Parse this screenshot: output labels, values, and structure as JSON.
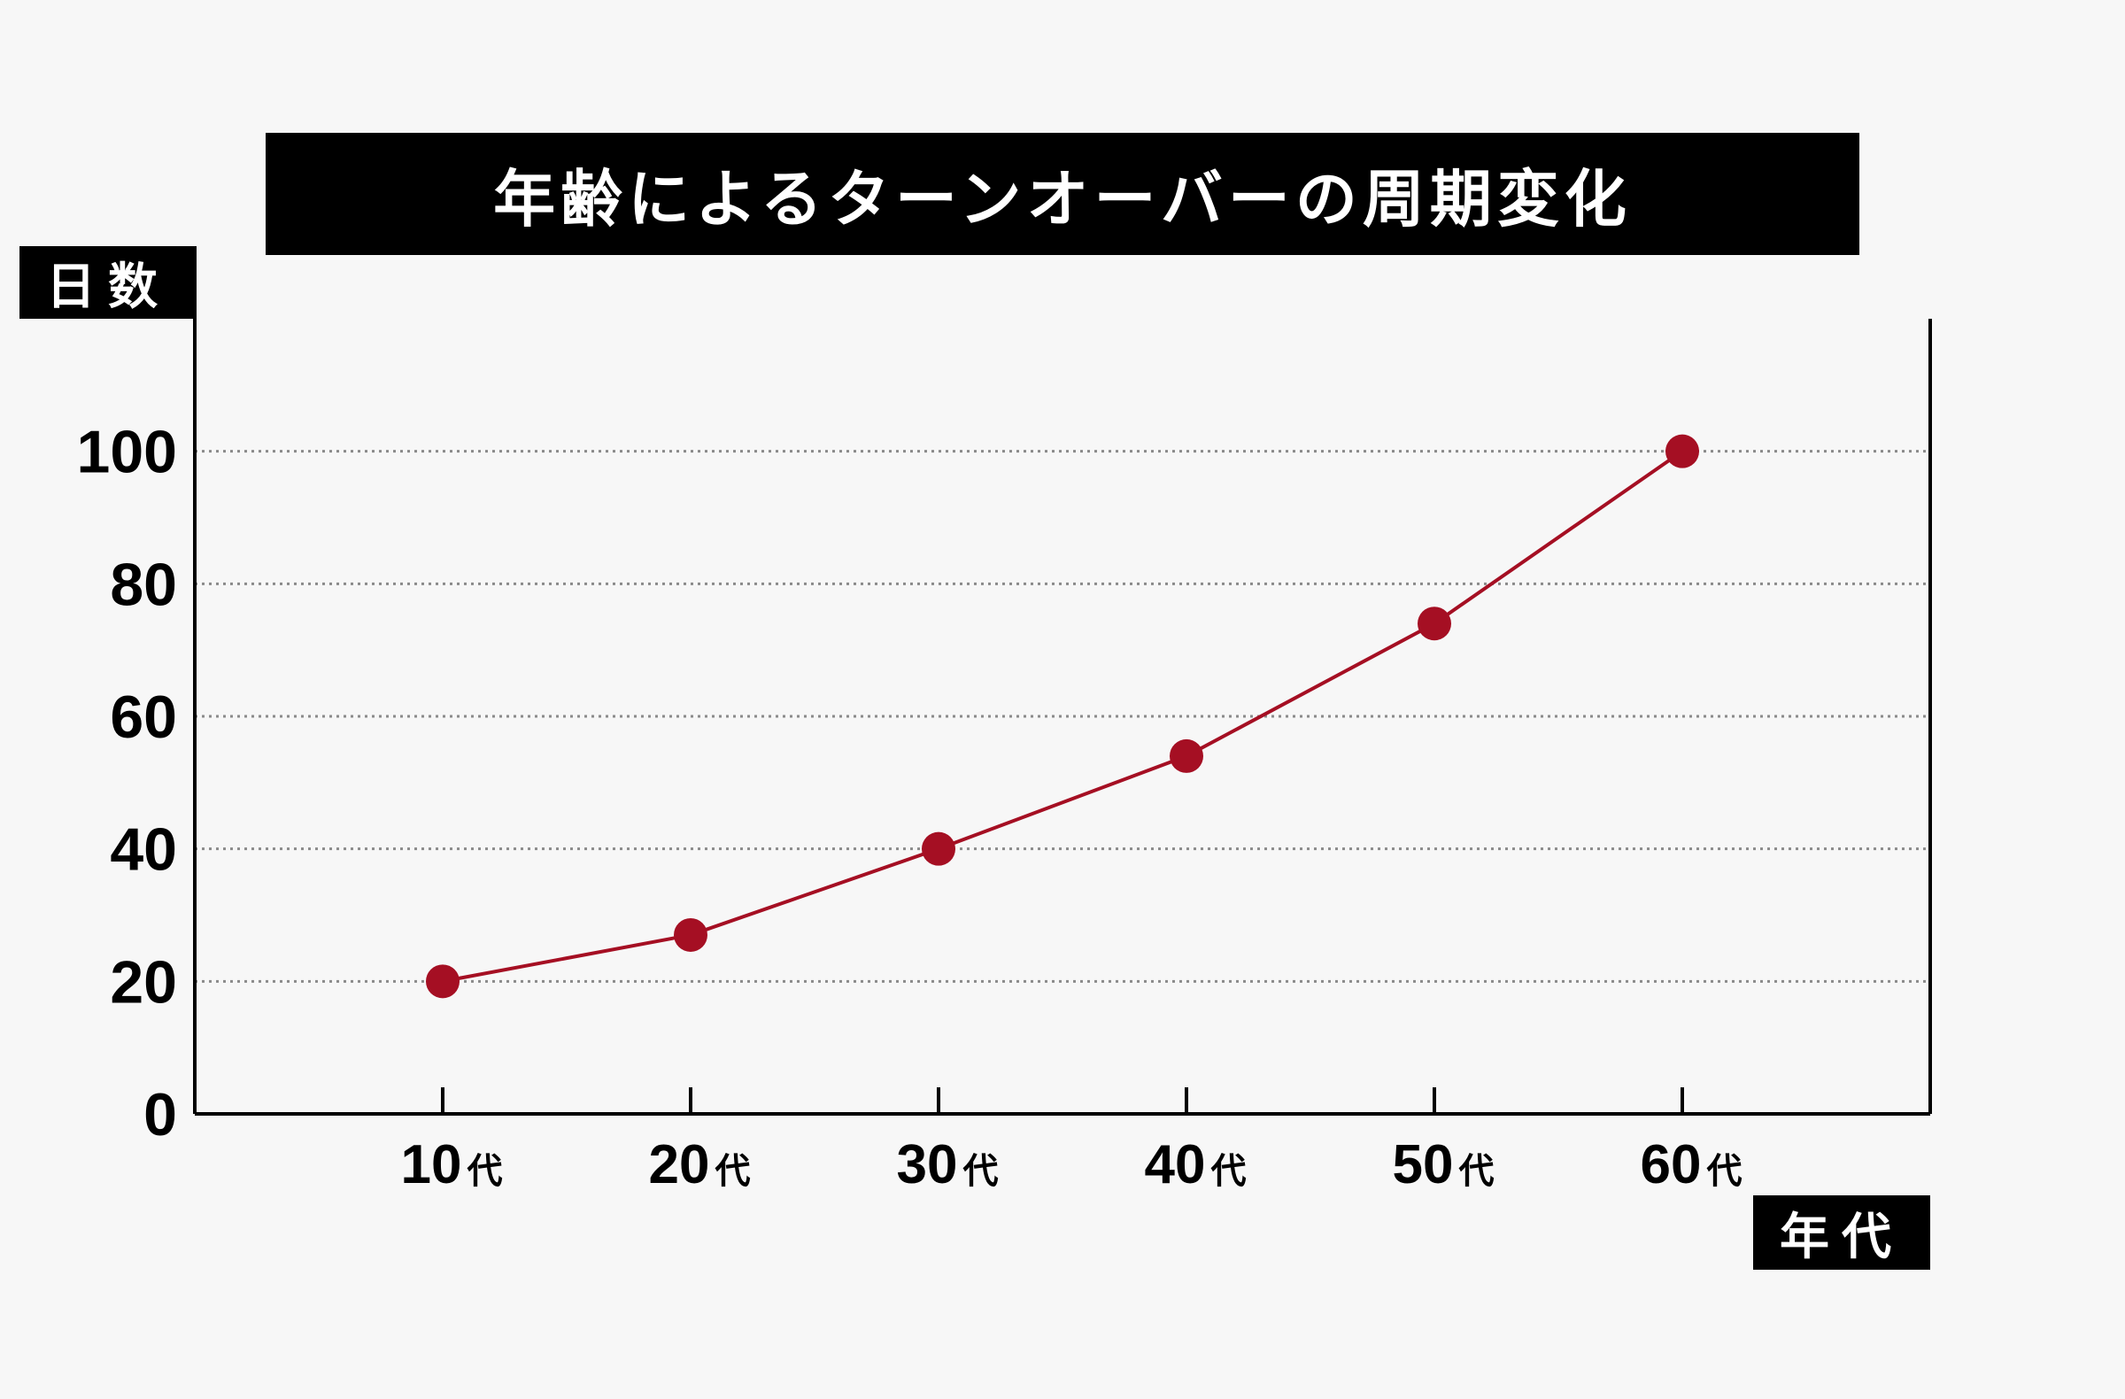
{
  "chart_data": {
    "type": "line",
    "title": "年齢によるターンオーバーの周期変化",
    "ylabel": "日数",
    "xlabel": "年代",
    "categories": [
      "10",
      "20",
      "30",
      "40",
      "50",
      "60"
    ],
    "category_suffix": "代",
    "values": [
      20,
      27,
      40,
      54,
      74,
      100
    ],
    "yticks": [
      0,
      20,
      40,
      60,
      80,
      100
    ],
    "ylim": [
      0,
      120
    ],
    "grid": "horizontal dotted",
    "colors": {
      "line": "#a50f23",
      "marker": "#a50f23",
      "axis": "#000000",
      "grid": "#8a8a8a"
    }
  }
}
